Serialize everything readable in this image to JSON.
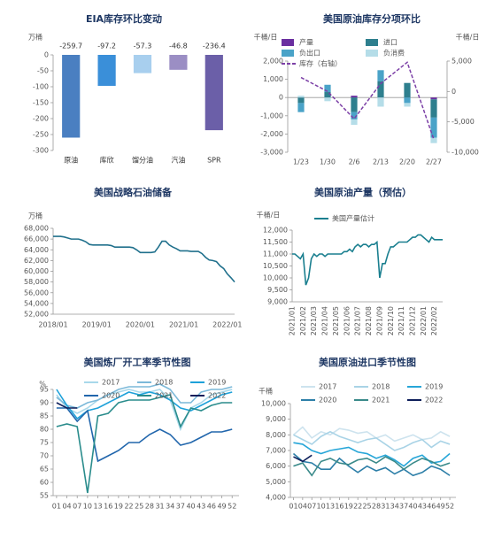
{
  "chart_data": [
    {
      "type": "bar",
      "title": "EIA库存环比变动",
      "y_label": "万桶",
      "categories": [
        "原油",
        "库欣",
        "馏分油",
        "汽油",
        "SPR"
      ],
      "values": [
        -259.7,
        -97.2,
        -57.3,
        -46.8,
        -236.4
      ],
      "colors": [
        "#4a7fc1",
        "#3a8fd9",
        "#a8cfee",
        "#9b8ec4",
        "#6b5fa8"
      ],
      "ylim": [
        -300,
        0
      ],
      "yticks": [
        0,
        -50,
        -100,
        -150,
        -200,
        -250,
        -300
      ],
      "grid": false
    },
    {
      "type": "combo",
      "title": "美国原油库存分项环比",
      "y_label": "千桶/日",
      "y2_label": "千桶/日",
      "categories": [
        "1/23",
        "1/30",
        "2/6",
        "2/13",
        "2/20",
        "2/27"
      ],
      "series": [
        {
          "name": "产量",
          "color": "#6a2fa0",
          "values": [
            0,
            0,
            100,
            0,
            0,
            -100
          ]
        },
        {
          "name": "进口",
          "color": "#2e7f8e",
          "values": [
            -300,
            300,
            -800,
            900,
            800,
            -1000
          ]
        },
        {
          "name": "负出口",
          "color": "#4aa3c8",
          "values": [
            -500,
            400,
            -400,
            600,
            -300,
            -1100
          ]
        },
        {
          "name": "负消费",
          "color": "#b5dde8",
          "values": [
            100,
            -200,
            -300,
            -500,
            -200,
            -300
          ]
        },
        {
          "name": "库存（右轴）",
          "color": "#7b3fa6",
          "axis": "y2",
          "dashed": true,
          "values": [
            2300,
            0,
            -4500,
            1300,
            4800,
            -7900
          ]
        }
      ],
      "ylim": [
        -3000,
        2000
      ],
      "yticks": [
        {
          "value": 2000,
          "label": "2,000"
        },
        {
          "value": 1000,
          "label": "1,000"
        },
        0,
        {
          "value": -1000,
          "label": "-1,000"
        },
        {
          "value": -2000,
          "label": "-2,000"
        },
        {
          "value": -3000,
          "label": "-3,000"
        }
      ],
      "y2lim": [
        -10000,
        5000
      ],
      "y2ticks": [
        {
          "value": 5000,
          "label": "5,000"
        },
        0,
        {
          "value": -5000,
          "label": "-5,000"
        },
        {
          "value": -10000,
          "label": "-10,000"
        }
      ],
      "grid": false
    },
    {
      "type": "line",
      "title": "美国战略石油储备",
      "y_label": "万桶",
      "categories": [
        "2018/01",
        null,
        null,
        null,
        null,
        null,
        null,
        null,
        null,
        null,
        null,
        null,
        "2019/01",
        null,
        null,
        null,
        null,
        null,
        null,
        null,
        null,
        null,
        null,
        null,
        "2020/01",
        null,
        null,
        null,
        null,
        null,
        null,
        null,
        null,
        null,
        null,
        null,
        "2021/01",
        null,
        null,
        null,
        null,
        null,
        null,
        null,
        null,
        null,
        null,
        null,
        "2022/01",
        null,
        null
      ],
      "series": [
        {
          "name": null,
          "color": "#20708c",
          "values": [
            66500,
            66500,
            66500,
            66400,
            66200,
            66000,
            66000,
            66000,
            65800,
            65500,
            65000,
            64900,
            64900,
            64900,
            64900,
            64900,
            64800,
            64500,
            64500,
            64500,
            64500,
            64500,
            64400,
            64000,
            63500,
            63500,
            63500,
            63500,
            63600,
            64500,
            65600,
            65600,
            64900,
            64500,
            64200,
            63800,
            63800,
            63800,
            63700,
            63700,
            63700,
            63300,
            62600,
            62100,
            62000,
            61800,
            61000,
            60500,
            59500,
            58800,
            58000
          ]
        }
      ],
      "ylim": [
        52000,
        68000
      ],
      "yticks": [
        {
          "value": 52000,
          "label": "52,000"
        },
        {
          "value": 54000,
          "label": "54,000"
        },
        {
          "value": 56000,
          "label": "56,000"
        },
        {
          "value": 58000,
          "label": "58,000"
        },
        {
          "value": 60000,
          "label": "60,000"
        },
        {
          "value": 62000,
          "label": "62,000"
        },
        {
          "value": 64000,
          "label": "64,000"
        },
        {
          "value": 66000,
          "label": "66,000"
        },
        {
          "value": 68000,
          "label": "68,000"
        }
      ],
      "grid": false
    },
    {
      "type": "line",
      "title": "美国原油产量（预估）",
      "y_label": "千桶/日",
      "categories": [
        "2021/01",
        null,
        null,
        null,
        "2021/02",
        null,
        null,
        null,
        "2021/03",
        null,
        null,
        null,
        "2021/04",
        null,
        null,
        null,
        "2021/05",
        null,
        null,
        null,
        "2021/06",
        null,
        null,
        null,
        "2021/07",
        null,
        null,
        null,
        "2021/08",
        null,
        null,
        null,
        "2021/09",
        null,
        null,
        null,
        "2021/10",
        null,
        null,
        null,
        "2021/11",
        null,
        null,
        null,
        "2021/12",
        null,
        null,
        null,
        "2022/01",
        null,
        null,
        null,
        "2022/02",
        null,
        null,
        null
      ],
      "series": [
        {
          "name": "美国产量估计",
          "color": "#1a7f8f",
          "values": [
            11000,
            11000,
            10900,
            10800,
            11000,
            9700,
            10000,
            10800,
            11000,
            10900,
            11000,
            11000,
            10900,
            11000,
            11000,
            11000,
            11000,
            11000,
            11000,
            11100,
            11100,
            11200,
            11100,
            11300,
            11400,
            11300,
            11400,
            11400,
            11300,
            11400,
            11400,
            11500,
            10000,
            10600,
            10600,
            11000,
            11300,
            11300,
            11400,
            11500,
            11500,
            11500,
            11500,
            11600,
            11700,
            11700,
            11800,
            11800,
            11700,
            11600,
            11500,
            11700,
            11600,
            11600,
            11600,
            11600
          ]
        }
      ],
      "ylim": [
        9000,
        12000
      ],
      "yticks": [
        {
          "value": 9000,
          "label": "9,000"
        },
        {
          "value": 9500,
          "label": "9,500"
        },
        {
          "value": 10000,
          "label": "10,000"
        },
        {
          "value": 10500,
          "label": "10,500"
        },
        {
          "value": 11000,
          "label": "11,000"
        },
        {
          "value": 11500,
          "label": "11,500"
        },
        {
          "value": 12000,
          "label": "12,000"
        }
      ],
      "grid": false
    },
    {
      "type": "line",
      "title": "美国炼厂开工率季节性图",
      "y_label": "%",
      "x": [
        1,
        4,
        7,
        10,
        13,
        16,
        19,
        22,
        25,
        28,
        31,
        34,
        37,
        40,
        43,
        46,
        49,
        52
      ],
      "series": [
        {
          "name": "2017",
          "color": "#a8d8ea",
          "values": [
            93,
            88,
            86,
            88,
            91,
            93,
            94,
            95,
            94,
            94,
            95,
            91,
            80,
            88,
            90,
            93,
            94,
            95
          ]
        },
        {
          "name": "2018",
          "color": "#7cb9d9",
          "values": [
            92,
            89,
            88,
            90,
            91,
            93,
            95,
            96,
            96,
            96,
            97,
            95,
            90,
            90,
            94,
            95,
            95,
            96
          ]
        },
        {
          "name": "2019",
          "color": "#1ea1d9",
          "values": [
            95,
            89,
            84,
            87,
            88,
            90,
            92,
            94,
            93,
            94,
            93,
            91,
            88,
            87,
            89,
            91,
            93,
            94
          ]
        },
        {
          "name": "2020",
          "color": "#2166ac",
          "values": [
            88,
            88,
            83,
            87,
            68,
            70,
            72,
            75,
            75,
            78,
            80,
            78,
            74,
            75,
            77,
            79,
            79,
            80
          ]
        },
        {
          "name": "2021",
          "color": "#2a8c8c",
          "values": [
            81,
            82,
            81,
            56,
            85,
            86,
            90,
            91,
            91,
            91,
            92,
            93,
            81,
            88,
            87,
            89,
            90,
            90
          ]
        },
        {
          "name": "2022",
          "color": "#0d1e5a",
          "values": [
            90,
            88,
            88,
            null,
            null,
            null,
            null,
            null,
            null,
            null,
            null,
            null,
            null,
            null,
            null,
            null,
            null,
            null
          ]
        }
      ],
      "xlim": [
        0,
        54
      ],
      "xticks": [
        {
          "value": 1,
          "label": "01"
        },
        {
          "value": 4,
          "label": "04"
        },
        {
          "value": 7,
          "label": "07"
        },
        10,
        13,
        16,
        19,
        22,
        25,
        28,
        31,
        34,
        37,
        40,
        43,
        46,
        49,
        52
      ],
      "ylim": [
        55,
        95
      ],
      "yticks": [
        55,
        60,
        65,
        70,
        75,
        80,
        85,
        90,
        95
      ],
      "grid": false
    },
    {
      "type": "line",
      "title": "美国原油进口季节性图",
      "y_label": "千桶",
      "x": [
        1,
        4,
        7,
        10,
        13,
        16,
        19,
        22,
        25,
        28,
        31,
        34,
        37,
        40,
        43,
        46,
        49,
        52
      ],
      "series": [
        {
          "name": "2017",
          "color": "#cde3ee",
          "values": [
            8000,
            8500,
            7800,
            8200,
            8000,
            8400,
            8300,
            8100,
            8200,
            7800,
            8000,
            7600,
            7800,
            8000,
            7700,
            7800,
            8200,
            7900
          ]
        },
        {
          "name": "2018",
          "color": "#a9d3e6",
          "values": [
            8000,
            7700,
            7400,
            7900,
            8200,
            7900,
            7700,
            7500,
            7700,
            7800,
            7400,
            7000,
            7200,
            7500,
            7700,
            7200,
            7600,
            7400
          ]
        },
        {
          "name": "2019",
          "color": "#27a6d8",
          "values": [
            7500,
            7400,
            7000,
            6800,
            7000,
            7100,
            7200,
            6900,
            6800,
            6500,
            6700,
            6400,
            6000,
            6500,
            6700,
            6200,
            6300,
            6800
          ]
        },
        {
          "name": "2020",
          "color": "#2d7fa8",
          "values": [
            6800,
            6300,
            6200,
            5800,
            5800,
            6500,
            6000,
            5600,
            6000,
            5700,
            5900,
            5500,
            5800,
            5400,
            5600,
            6000,
            5800,
            5400
          ]
        },
        {
          "name": "2021",
          "color": "#3a8a8a",
          "values": [
            6000,
            6200,
            5400,
            6300,
            6500,
            6200,
            6100,
            6400,
            6500,
            6200,
            6600,
            6300,
            5800,
            6200,
            6500,
            6300,
            6000,
            6200
          ]
        },
        {
          "name": "2022",
          "color": "#0d1e5a",
          "values": [
            6600,
            6300,
            6700,
            null,
            null,
            null,
            null,
            null,
            null,
            null,
            null,
            null,
            null,
            null,
            null,
            null,
            null,
            null
          ]
        }
      ],
      "xlim": [
        0,
        54
      ],
      "xticks": [
        {
          "value": 1,
          "label": "01"
        },
        {
          "value": 4,
          "label": "04"
        },
        {
          "value": 7,
          "label": "07"
        },
        10,
        13,
        16,
        19,
        22,
        25,
        28,
        31,
        34,
        37,
        40,
        43,
        46,
        49,
        52
      ],
      "ylim": [
        4000,
        10000
      ],
      "yticks": [
        {
          "value": 4000,
          "label": "4,000"
        },
        {
          "value": 5000,
          "label": "5,000"
        },
        {
          "value": 6000,
          "label": "6,000"
        },
        {
          "value": 7000,
          "label": "7,000"
        },
        {
          "value": 8000,
          "label": "8,000"
        },
        {
          "value": 9000,
          "label": "9,000"
        },
        {
          "value": 10000,
          "label": "10,000"
        }
      ],
      "grid": false
    }
  ]
}
